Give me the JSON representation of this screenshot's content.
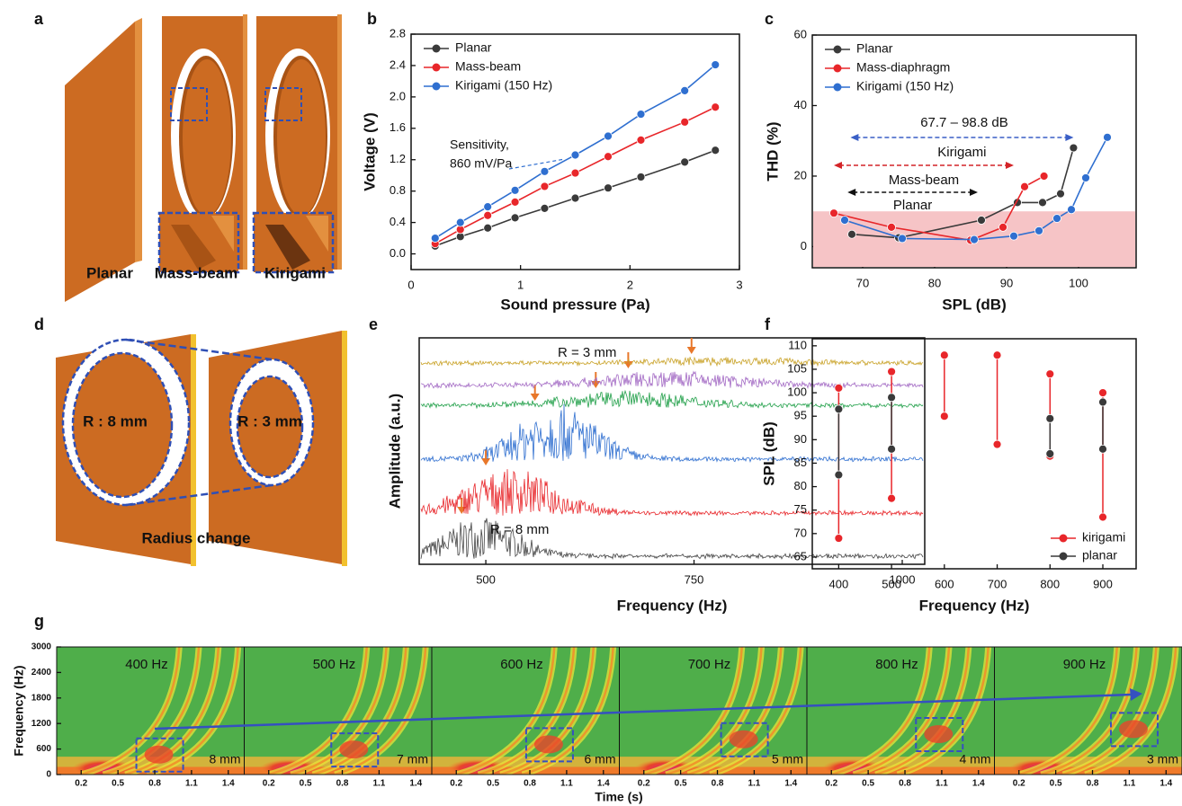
{
  "illustrations": {
    "a": {
      "panel": "a",
      "labels": [
        "Planar",
        "Mass-beam",
        "Kirigami"
      ]
    },
    "d": {
      "panel": "d",
      "labels": [
        "R : 8 mm",
        "R : 3 mm",
        "Radius change"
      ]
    }
  },
  "chart_data": [
    {
      "panel": "b",
      "type": "line",
      "x_label": "Sound pressure (Pa)",
      "y_label": "Voltage (V)",
      "xlim": [
        0,
        3
      ],
      "xticks": [
        0,
        1,
        2,
        3
      ],
      "ylim": [
        -0.2,
        2.8
      ],
      "yticks": [
        {
          "value": 0,
          "label": "0.0"
        },
        0.4,
        0.8,
        1.2,
        1.6,
        {
          "value": 2,
          "label": "2.0"
        },
        2.4,
        2.8
      ],
      "x": [
        0.22,
        0.45,
        0.7,
        0.95,
        1.22,
        1.5,
        1.8,
        2.1,
        2.5,
        2.78
      ],
      "series": [
        {
          "name": "Planar",
          "color": "#3a3a3a",
          "values": [
            0.1,
            0.22,
            0.33,
            0.46,
            0.58,
            0.71,
            0.84,
            0.98,
            1.17,
            1.32
          ]
        },
        {
          "name": "Mass-beam",
          "color": "#e8262a",
          "values": [
            0.13,
            0.31,
            0.49,
            0.66,
            0.86,
            1.03,
            1.24,
            1.45,
            1.68,
            1.87
          ]
        },
        {
          "name": "Kirigami (150 Hz)",
          "color": "#2f6fd0",
          "values": [
            0.2,
            0.4,
            0.6,
            0.81,
            1.05,
            1.26,
            1.5,
            1.78,
            2.08,
            2.41
          ]
        }
      ],
      "annotation": [
        "Sensitivity,",
        "860 mV/Pa"
      ],
      "legend": "upper left"
    },
    {
      "panel": "c",
      "type": "line",
      "x_label": "SPL (dB)",
      "y_label": "THD (%)",
      "xlim": [
        63,
        108
      ],
      "xticks": [
        70,
        80,
        90,
        100
      ],
      "ylim": [
        -6,
        60
      ],
      "yticks": [
        0,
        20,
        40,
        60
      ],
      "shaded_below": 10,
      "shade_color": "#f6c4c6",
      "series": [
        {
          "name": "Planar",
          "color": "#3a3a3a",
          "x": [
            68.5,
            75,
            86.5,
            91.5,
            95,
            97.5,
            99.3
          ],
          "values": [
            3.5,
            2.5,
            7.5,
            12.5,
            12.5,
            15,
            28
          ]
        },
        {
          "name": "Mass-diaphragm",
          "color": "#e8262a",
          "x": [
            66,
            74,
            85,
            89.5,
            92.5,
            95.2
          ],
          "values": [
            9.5,
            5.5,
            1.8,
            5.5,
            17,
            20
          ]
        },
        {
          "name": "Kirigami (150 Hz)",
          "color": "#2f6fd0",
          "x": [
            67.5,
            75.5,
            85.5,
            91,
            94.5,
            97,
            99,
            101,
            104
          ],
          "values": [
            7.5,
            2.3,
            2,
            3,
            4.5,
            8,
            10.5,
            19.5,
            31
          ]
        }
      ],
      "annotations": [
        {
          "text": "67.7 – 98.8 dB",
          "color": "#3a5fc6"
        },
        {
          "text": "Kirigami",
          "color": "#3a5fc6",
          "span": [
            68.3,
            99.3
          ]
        },
        {
          "text": "Mass-beam",
          "color": "#d42428",
          "span": [
            66,
            91
          ]
        },
        {
          "text": "Planar",
          "color": "#111111",
          "span": [
            67.9,
            86
          ]
        }
      ],
      "legend": "upper left"
    },
    {
      "panel": "e",
      "type": "spectrum",
      "x_label": "Frequency (Hz)",
      "y_label": "Amplitude (a.u.)",
      "xlim": [
        420,
        1027
      ],
      "xticks": [
        500,
        750,
        1000
      ],
      "traces": [
        {
          "color": "#444444",
          "peak": 471
        },
        {
          "color": "#e8262a",
          "peak": 500
        },
        {
          "color": "#2f6fd0",
          "peak": 559
        },
        {
          "color": "#22a04a",
          "peak": 632
        },
        {
          "color": "#a36ac4",
          "peak": 671
        },
        {
          "color": "#c9a227",
          "peak": 747
        }
      ],
      "peak_color": "#e8772a",
      "labels": [
        "R = 3 mm",
        "R = 8 mm"
      ]
    },
    {
      "panel": "f",
      "type": "range",
      "x_label": "Frequency (Hz)",
      "y_label": "SPL (dB)",
      "xlim": [
        350,
        963
      ],
      "xticks": [
        400,
        500,
        600,
        700,
        800,
        900
      ],
      "ylim": [
        62.5,
        111.5
      ],
      "yticks": [
        65,
        70,
        75,
        80,
        85,
        90,
        95,
        100,
        105,
        110
      ],
      "x": [
        400,
        500,
        600,
        700,
        800,
        900
      ],
      "series": [
        {
          "name": "kirigami",
          "color": "#e8262a",
          "low": [
            69,
            77.5,
            95,
            89,
            86.5,
            73.5
          ],
          "high": [
            101,
            104.5,
            108,
            108,
            104,
            100
          ]
        },
        {
          "name": "planar",
          "color": "#3a3a3a",
          "low": [
            82.5,
            88,
            null,
            null,
            87,
            88
          ],
          "high": [
            96.5,
            99,
            null,
            null,
            94.5,
            98
          ]
        }
      ],
      "legend": "lower right"
    },
    {
      "panel": "g",
      "type": "spectrogram",
      "x_label": "Time (s)",
      "y_label": "Frequency (Hz)",
      "xlim": [
        0,
        1.53
      ],
      "xticks": [
        0.2,
        0.5,
        0.8,
        1.1,
        1.4
      ],
      "ylim": [
        0,
        3000
      ],
      "yticks": [
        0,
        600,
        1200,
        1800,
        2400,
        3000
      ],
      "panels": [
        {
          "label": "400 Hz",
          "radius": "8 mm"
        },
        {
          "label": "500 Hz",
          "radius": "7 mm"
        },
        {
          "label": "600 Hz",
          "radius": "6 mm"
        },
        {
          "label": "700 Hz",
          "radius": "5 mm"
        },
        {
          "label": "800 Hz",
          "radius": "4 mm"
        },
        {
          "label": "900 Hz",
          "radius": "3 mm"
        }
      ]
    }
  ]
}
